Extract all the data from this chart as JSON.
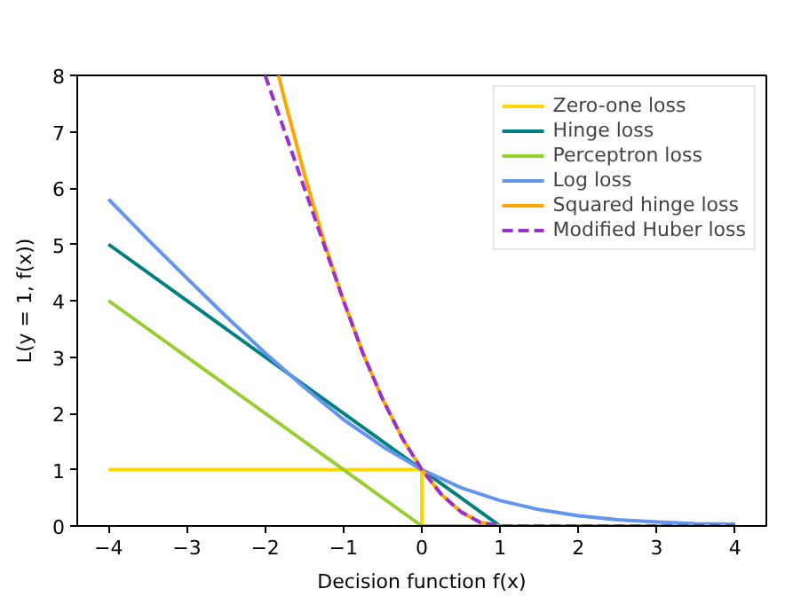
{
  "chart_data": {
    "type": "line",
    "xlabel": "Decision function f(x)",
    "ylabel": "L(y = 1, f(x))",
    "xlim": [
      -4.4,
      4.4
    ],
    "ylim": [
      0,
      8
    ],
    "xticks": [
      {
        "value": -4,
        "label": "−4"
      },
      {
        "value": -3,
        "label": "−3"
      },
      {
        "value": -2,
        "label": "−2"
      },
      {
        "value": -1,
        "label": "−1"
      },
      0,
      1,
      2,
      3,
      4
    ],
    "yticks": [
      0,
      1,
      2,
      3,
      4,
      5,
      6,
      7,
      8
    ],
    "legend": "top right",
    "series": [
      {
        "name": "Zero-one loss",
        "color": "#ffd700",
        "line_style": "solid",
        "x": [
          -4,
          0,
          0,
          4
        ],
        "values": [
          1,
          1,
          0,
          0
        ]
      },
      {
        "name": "Hinge loss",
        "color": "#008080",
        "line_style": "solid",
        "x": [
          -4,
          1,
          4
        ],
        "values": [
          5,
          0,
          0
        ]
      },
      {
        "name": "Perceptron loss",
        "color": "#9acd32",
        "line_style": "solid",
        "x": [
          -4,
          0,
          4
        ],
        "values": [
          4,
          0,
          0
        ]
      },
      {
        "name": "Log loss",
        "color": "#6495ed",
        "line_style": "solid",
        "x": [
          -4,
          -3.5,
          -3,
          -2.5,
          -2,
          -1.5,
          -1,
          -0.5,
          0,
          0.5,
          1,
          1.5,
          2,
          2.5,
          3,
          3.5,
          4
        ],
        "values": [
          5.8,
          5.09,
          4.4,
          3.72,
          3.07,
          2.46,
          1.89,
          1.41,
          1,
          0.68,
          0.45,
          0.29,
          0.18,
          0.11,
          0.07,
          0.04,
          0.03
        ]
      },
      {
        "name": "Squared hinge loss",
        "color": "#ffa500",
        "line_style": "solid",
        "x": [
          -1.83,
          -1.75,
          -1.5,
          -1.25,
          -1,
          -0.75,
          -0.5,
          -0.25,
          0,
          0.25,
          0.5,
          0.75,
          1,
          4
        ],
        "values": [
          8,
          7.56,
          6.25,
          5.06,
          4,
          3.06,
          2.25,
          1.56,
          1,
          0.56,
          0.25,
          0.06,
          0,
          0
        ]
      },
      {
        "name": "Modified Huber loss",
        "color": "#9932cc",
        "line_style": "dashed",
        "x": [
          -2,
          -1.5,
          -1,
          -0.75,
          -0.5,
          -0.25,
          0,
          0.25,
          0.5,
          0.75,
          1,
          4
        ],
        "values": [
          8,
          6,
          4,
          3.06,
          2.25,
          1.56,
          1,
          0.56,
          0.25,
          0.06,
          0,
          0
        ]
      }
    ]
  }
}
